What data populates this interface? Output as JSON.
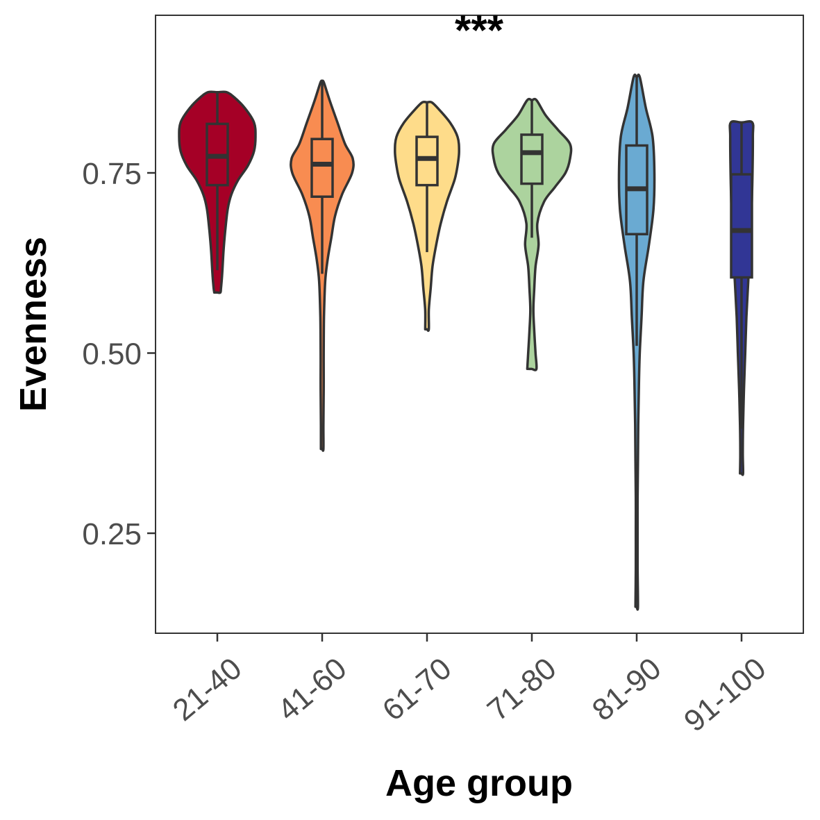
{
  "chart_data": {
    "type": "violin",
    "xlabel": "Age group",
    "ylabel": "Evenness",
    "annotation": "***",
    "ylim": [
      0.115,
      0.97
    ],
    "yticks": [
      0.25,
      0.5,
      0.75
    ],
    "ytick_labels": [
      "0.25",
      "0.50",
      "0.75"
    ],
    "grid": false,
    "legend": "none",
    "groups": [
      {
        "category": "21-40",
        "color": "#a50026",
        "box": {
          "whisker_low": 0.615,
          "q1": 0.733,
          "median": 0.773,
          "q3": 0.818,
          "whisker_high": 0.862
        },
        "density": [
          [
            0.584,
            0.01
          ],
          [
            0.59,
            0.012
          ],
          [
            0.61,
            0.016
          ],
          [
            0.64,
            0.02
          ],
          [
            0.67,
            0.026
          ],
          [
            0.7,
            0.034
          ],
          [
            0.72,
            0.046
          ],
          [
            0.74,
            0.068
          ],
          [
            0.76,
            0.1
          ],
          [
            0.78,
            0.12
          ],
          [
            0.8,
            0.125
          ],
          [
            0.82,
            0.12
          ],
          [
            0.84,
            0.09
          ],
          [
            0.855,
            0.055
          ],
          [
            0.862,
            0.03
          ]
        ]
      },
      {
        "category": "41-60",
        "color": "#f88c51",
        "box": {
          "whisker_low": 0.61,
          "q1": 0.717,
          "median": 0.762,
          "q3": 0.797,
          "whisker_high": 0.876
        },
        "density": [
          [
            0.367,
            0.004
          ],
          [
            0.4,
            0.004
          ],
          [
            0.45,
            0.005
          ],
          [
            0.5,
            0.005
          ],
          [
            0.55,
            0.006
          ],
          [
            0.6,
            0.01
          ],
          [
            0.63,
            0.018
          ],
          [
            0.66,
            0.03
          ],
          [
            0.69,
            0.042
          ],
          [
            0.72,
            0.065
          ],
          [
            0.75,
            0.098
          ],
          [
            0.77,
            0.1
          ],
          [
            0.79,
            0.075
          ],
          [
            0.82,
            0.05
          ],
          [
            0.85,
            0.025
          ],
          [
            0.876,
            0.005
          ]
        ]
      },
      {
        "category": "61-70",
        "color": "#fedc8a",
        "box": {
          "whisker_low": 0.64,
          "q1": 0.733,
          "median": 0.77,
          "q3": 0.8,
          "whisker_high": 0.848
        },
        "density": [
          [
            0.533,
            0.006
          ],
          [
            0.56,
            0.006
          ],
          [
            0.59,
            0.012
          ],
          [
            0.62,
            0.018
          ],
          [
            0.65,
            0.03
          ],
          [
            0.68,
            0.045
          ],
          [
            0.71,
            0.065
          ],
          [
            0.74,
            0.09
          ],
          [
            0.76,
            0.1
          ],
          [
            0.78,
            0.105
          ],
          [
            0.8,
            0.1
          ],
          [
            0.82,
            0.075
          ],
          [
            0.84,
            0.035
          ],
          [
            0.848,
            0.015
          ]
        ]
      },
      {
        "category": "71-80",
        "color": "#acd39e",
        "box": {
          "whisker_low": 0.66,
          "q1": 0.735,
          "median": 0.778,
          "q3": 0.803,
          "whisker_high": 0.851
        },
        "density": [
          [
            0.478,
            0.015
          ],
          [
            0.5,
            0.012
          ],
          [
            0.53,
            0.008
          ],
          [
            0.56,
            0.005
          ],
          [
            0.59,
            0.008
          ],
          [
            0.62,
            0.012
          ],
          [
            0.65,
            0.022
          ],
          [
            0.68,
            0.018
          ],
          [
            0.71,
            0.04
          ],
          [
            0.73,
            0.075
          ],
          [
            0.75,
            0.11
          ],
          [
            0.77,
            0.125
          ],
          [
            0.79,
            0.125
          ],
          [
            0.81,
            0.085
          ],
          [
            0.83,
            0.045
          ],
          [
            0.851,
            0.015
          ]
        ]
      },
      {
        "category": "81-90",
        "color": "#6aaad2",
        "box": {
          "whisker_low": 0.51,
          "q1": 0.665,
          "median": 0.728,
          "q3": 0.788,
          "whisker_high": 0.883
        },
        "density": [
          [
            0.148,
            0.004
          ],
          [
            0.2,
            0.003
          ],
          [
            0.25,
            0.003
          ],
          [
            0.3,
            0.003
          ],
          [
            0.35,
            0.004
          ],
          [
            0.4,
            0.005
          ],
          [
            0.45,
            0.007
          ],
          [
            0.5,
            0.01
          ],
          [
            0.55,
            0.016
          ],
          [
            0.6,
            0.022
          ],
          [
            0.65,
            0.04
          ],
          [
            0.7,
            0.055
          ],
          [
            0.75,
            0.058
          ],
          [
            0.8,
            0.052
          ],
          [
            0.84,
            0.03
          ],
          [
            0.883,
            0.01
          ]
        ]
      },
      {
        "category": "91-100",
        "color": "#313695",
        "box": {
          "whisker_low": 0.395,
          "q1": 0.605,
          "median": 0.67,
          "q3": 0.748,
          "whisker_high": 0.82
        },
        "density": [
          [
            0.333,
            0.005
          ],
          [
            0.36,
            0.004
          ],
          [
            0.4,
            0.005
          ],
          [
            0.45,
            0.008
          ],
          [
            0.5,
            0.012
          ],
          [
            0.55,
            0.016
          ],
          [
            0.6,
            0.022
          ],
          [
            0.65,
            0.028
          ],
          [
            0.7,
            0.033
          ],
          [
            0.75,
            0.036
          ],
          [
            0.8,
            0.037
          ],
          [
            0.82,
            0.035
          ]
        ]
      }
    ]
  }
}
